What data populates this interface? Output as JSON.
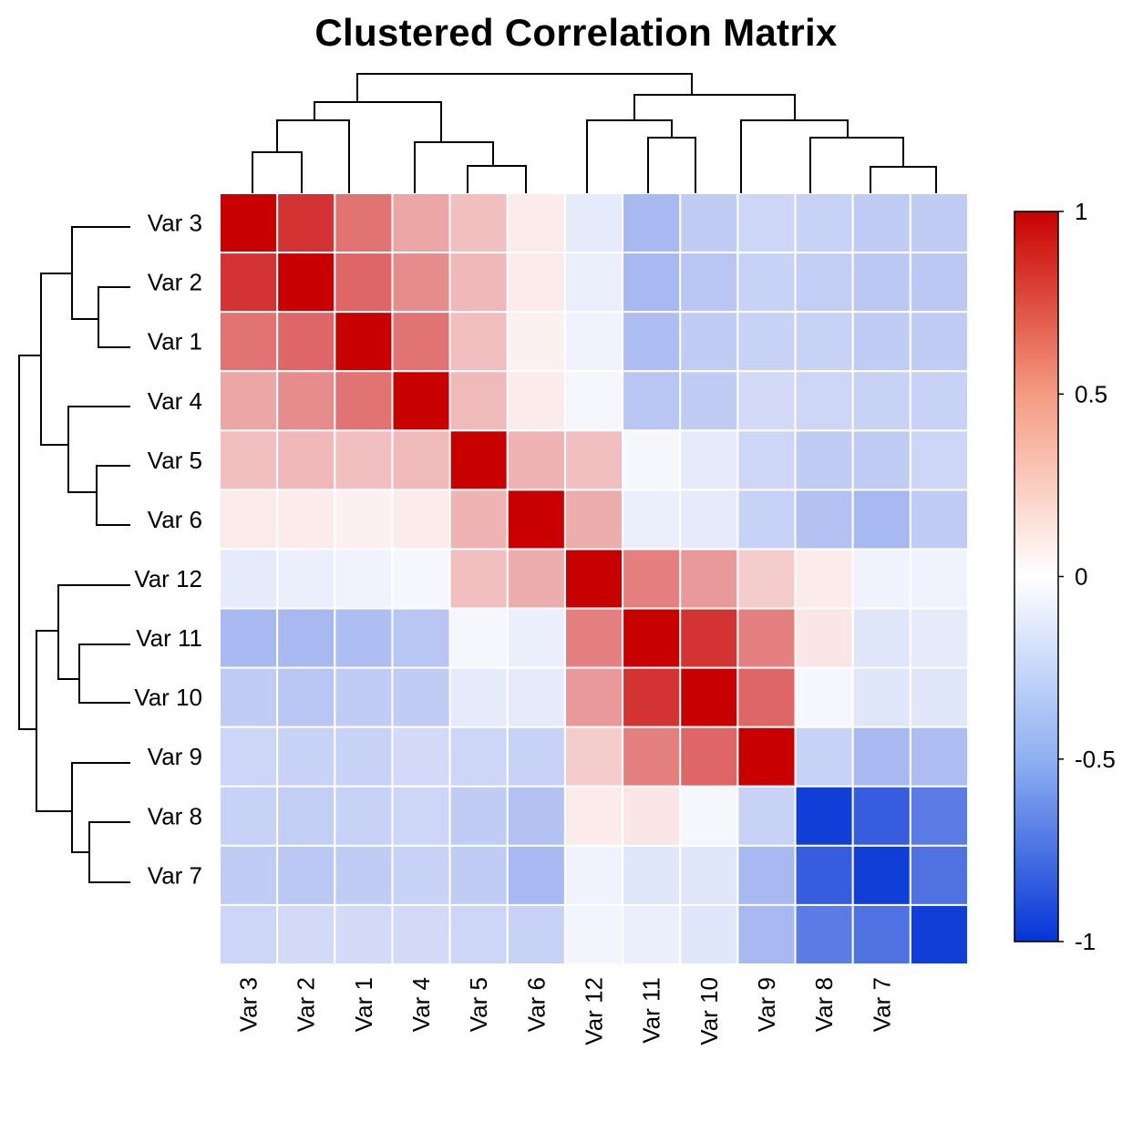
{
  "chart_data": {
    "type": "heatmap",
    "title": "Clustered Correlation Matrix",
    "row_labels": [
      "Var 3",
      "Var 2",
      "Var 1",
      "Var 4",
      "Var 5",
      "Var 6",
      "Var 12",
      "Var 11",
      "Var 10",
      "Var 9",
      "Var 8",
      "Var 7",
      ""
    ],
    "col_labels": [
      "Var 3",
      "Var 2",
      "Var 1",
      "Var 4",
      "Var 5",
      "Var 6",
      "Var 12",
      "Var 11",
      "Var 10",
      "Var 9",
      "Var 8",
      "Var 7",
      ""
    ],
    "values": [
      [
        1.0,
        0.8,
        0.55,
        0.35,
        0.25,
        0.08,
        -0.1,
        -0.35,
        -0.25,
        -0.2,
        -0.22,
        -0.25,
        -0.25
      ],
      [
        0.8,
        1.0,
        0.6,
        0.45,
        0.28,
        0.08,
        -0.08,
        -0.35,
        -0.28,
        -0.22,
        -0.24,
        -0.27,
        -0.27
      ],
      [
        0.55,
        0.6,
        1.0,
        0.55,
        0.25,
        0.06,
        -0.06,
        -0.32,
        -0.25,
        -0.22,
        -0.22,
        -0.25,
        -0.25
      ],
      [
        0.35,
        0.45,
        0.55,
        1.0,
        0.27,
        0.08,
        -0.04,
        -0.28,
        -0.25,
        -0.18,
        -0.2,
        -0.22,
        -0.22
      ],
      [
        0.25,
        0.28,
        0.25,
        0.27,
        1.0,
        0.3,
        0.25,
        -0.04,
        -0.1,
        -0.2,
        -0.25,
        -0.25,
        -0.2
      ],
      [
        0.08,
        0.08,
        0.06,
        0.08,
        0.3,
        1.0,
        0.32,
        -0.08,
        -0.1,
        -0.22,
        -0.3,
        -0.35,
        -0.25
      ],
      [
        -0.1,
        -0.08,
        -0.06,
        -0.04,
        0.25,
        0.32,
        1.0,
        0.5,
        0.4,
        0.2,
        0.08,
        -0.06,
        -0.06
      ],
      [
        -0.35,
        -0.35,
        -0.32,
        -0.28,
        -0.04,
        -0.08,
        0.5,
        1.0,
        0.8,
        0.5,
        0.1,
        -0.12,
        -0.1
      ],
      [
        -0.25,
        -0.28,
        -0.25,
        -0.25,
        -0.1,
        -0.1,
        0.4,
        0.8,
        1.0,
        0.6,
        -0.04,
        -0.12,
        -0.12
      ],
      [
        -0.2,
        -0.22,
        -0.22,
        -0.18,
        -0.2,
        -0.22,
        0.2,
        0.5,
        0.6,
        1.0,
        -0.22,
        -0.35,
        -0.32
      ],
      [
        -0.22,
        -0.24,
        -0.22,
        -0.2,
        -0.25,
        -0.3,
        0.08,
        0.1,
        -0.04,
        -0.22,
        -0.95,
        -0.8,
        -0.65
      ],
      [
        -0.25,
        -0.27,
        -0.25,
        -0.22,
        -0.25,
        -0.35,
        -0.06,
        -0.12,
        -0.12,
        -0.35,
        -0.8,
        -0.95,
        -0.7
      ],
      [
        -0.2,
        -0.18,
        -0.18,
        -0.18,
        -0.2,
        -0.22,
        -0.05,
        -0.08,
        -0.12,
        -0.35,
        -0.65,
        -0.7,
        -0.95
      ]
    ],
    "colorbar": {
      "min": -1,
      "max": 1,
      "ticks": [
        "1",
        "0.5",
        "0",
        "-0.5",
        "-1"
      ],
      "low_color": "#0534d6",
      "mid_color": "#ffffff",
      "high_color": "#c80000"
    },
    "dendrogram": "both"
  }
}
